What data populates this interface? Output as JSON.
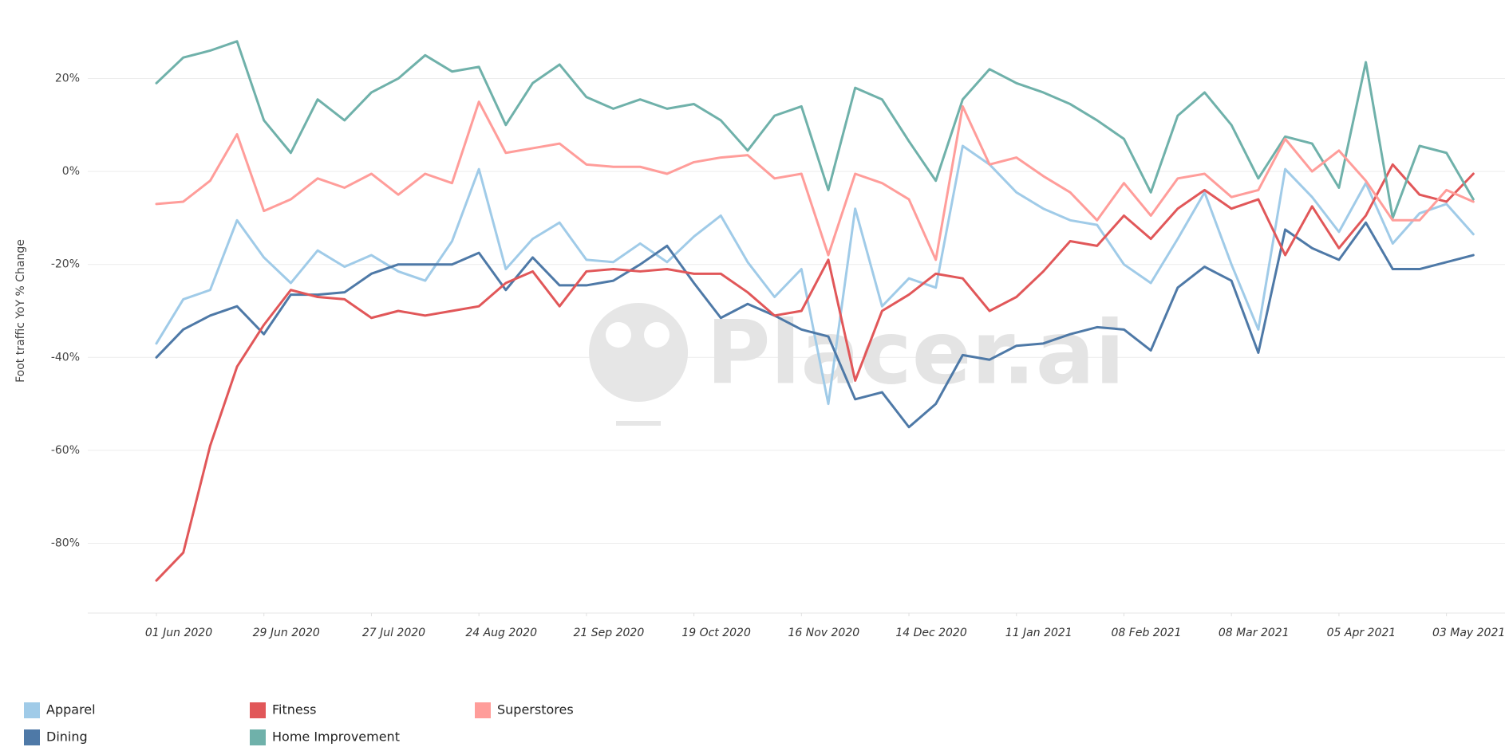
{
  "chart_data": {
    "type": "line",
    "y_label": "Foot traffic YoY % Change",
    "watermark": "Placer.ai",
    "x": [
      "2020-06-01",
      "2020-06-08",
      "2020-06-15",
      "2020-06-22",
      "2020-06-29",
      "2020-07-06",
      "2020-07-13",
      "2020-07-20",
      "2020-07-27",
      "2020-08-03",
      "2020-08-10",
      "2020-08-17",
      "2020-08-24",
      "2020-08-31",
      "2020-09-07",
      "2020-09-14",
      "2020-09-21",
      "2020-09-28",
      "2020-10-05",
      "2020-10-12",
      "2020-10-19",
      "2020-10-26",
      "2020-11-02",
      "2020-11-09",
      "2020-11-16",
      "2020-11-23",
      "2020-11-30",
      "2020-12-07",
      "2020-12-14",
      "2020-12-21",
      "2020-12-28",
      "2021-01-04",
      "2021-01-11",
      "2021-01-18",
      "2021-01-25",
      "2021-02-01",
      "2021-02-08",
      "2021-02-15",
      "2021-02-22",
      "2021-03-01",
      "2021-03-08",
      "2021-03-15",
      "2021-03-22",
      "2021-03-29",
      "2021-04-05",
      "2021-04-12",
      "2021-04-19",
      "2021-04-26",
      "2021-05-03",
      "2021-05-10"
    ],
    "xticks": [
      {
        "value": "2020-06-01",
        "label": "01 Jun 2020"
      },
      {
        "value": "2020-06-29",
        "label": "29 Jun 2020"
      },
      {
        "value": "2020-07-27",
        "label": "27 Jul 2020"
      },
      {
        "value": "2020-08-24",
        "label": "24 Aug 2020"
      },
      {
        "value": "2020-09-21",
        "label": "21 Sep 2020"
      },
      {
        "value": "2020-10-19",
        "label": "19 Oct 2020"
      },
      {
        "value": "2020-11-16",
        "label": "16 Nov 2020"
      },
      {
        "value": "2020-12-14",
        "label": "14 Dec 2020"
      },
      {
        "value": "2021-01-11",
        "label": "11 Jan 2021"
      },
      {
        "value": "2021-02-08",
        "label": "08 Feb 2021"
      },
      {
        "value": "2021-03-08",
        "label": "08 Mar 2021"
      },
      {
        "value": "2021-04-05",
        "label": "05 Apr 2021"
      },
      {
        "value": "2021-05-03",
        "label": "03 May 2021"
      }
    ],
    "ylim": [
      -95,
      35
    ],
    "yticks": [
      {
        "value": 20,
        "label": "20%"
      },
      {
        "value": 0,
        "label": "0%"
      },
      {
        "value": -20,
        "label": "-20%"
      },
      {
        "value": -40,
        "label": "-40%"
      },
      {
        "value": -60,
        "label": "-60%"
      },
      {
        "value": -80,
        "label": "-80%"
      }
    ],
    "grid": true,
    "legend": "bottom-left",
    "series": [
      {
        "name": "Apparel",
        "color": "#a0cbe8",
        "values": [
          -37,
          -27.5,
          -25.5,
          -10.5,
          -18.5,
          -24,
          -17,
          -20.5,
          -18,
          -21.5,
          -23.5,
          -15,
          0.5,
          -21,
          -14.5,
          -11,
          -19,
          -19.5,
          -15.5,
          -19.5,
          -14,
          -9.5,
          -19.5,
          -27,
          -21,
          -50,
          -8,
          -29,
          -23,
          -25,
          5.5,
          1.5,
          -4.5,
          -8,
          -10.5,
          -11.5,
          -20,
          -24,
          -14.5,
          -4.5,
          -20,
          -34,
          0.5,
          -5.5,
          -13,
          -2.5,
          -15.5,
          -9,
          -7,
          -13.5
        ]
      },
      {
        "name": "Dining",
        "color": "#4e79a7",
        "values": [
          -40,
          -34,
          -31,
          -29,
          -35,
          -26.5,
          -26.5,
          -26,
          -22,
          -20,
          -20,
          -20,
          -17.5,
          -25.5,
          -18.5,
          -24.5,
          -24.5,
          -23.5,
          -20,
          -16,
          -24,
          -31.5,
          -28.5,
          -31,
          -34,
          -35.5,
          -49,
          -47.5,
          -55,
          -50,
          -39.5,
          -40.5,
          -37.5,
          -37,
          -35,
          -33.5,
          -34,
          -38.5,
          -25,
          -20.5,
          -23.5,
          -39,
          -12.5,
          -16.5,
          -19,
          -11,
          -21,
          -21,
          -19.5,
          -18
        ]
      },
      {
        "name": "Fitness",
        "color": "#e15759",
        "values": [
          -88,
          -82,
          -59,
          -42,
          -33,
          -25.5,
          -27,
          -27.5,
          -31.5,
          -30,
          -31,
          -30,
          -29,
          -24,
          -21.5,
          -29,
          -21.5,
          -21,
          -21.5,
          -21,
          -22,
          -22,
          -26,
          -31,
          -30,
          -19,
          -45,
          -30,
          -26.5,
          -22,
          -23,
          -30,
          -27,
          -21.5,
          -15,
          -16,
          -9.5,
          -14.5,
          -8,
          -4,
          -8,
          -6,
          -18,
          -7.5,
          -16.5,
          -9.5,
          1.5,
          -5,
          -6.5,
          -0.5
        ]
      },
      {
        "name": "Home Improvement",
        "color": "#6fb1aa",
        "values": [
          19,
          24.5,
          26,
          28,
          11,
          4,
          15.5,
          11,
          17,
          20,
          25,
          21.5,
          22.5,
          10,
          19,
          23,
          16,
          13.5,
          15.5,
          13.5,
          14.5,
          11,
          4.5,
          12,
          14,
          -4,
          18,
          15.5,
          6.5,
          -2,
          15.5,
          22,
          19,
          17,
          14.5,
          11,
          7,
          -4.5,
          12,
          17,
          10,
          -1.5,
          7.5,
          6,
          -3.5,
          23.5,
          -10,
          5.5,
          4,
          -6
        ]
      },
      {
        "name": "Superstores",
        "color": "#ff9d9a",
        "values": [
          -7,
          -6.5,
          -2,
          8,
          -8.5,
          -6,
          -1.5,
          -3.5,
          -0.5,
          -5,
          -0.5,
          -2.5,
          15,
          4,
          5,
          6,
          1.5,
          1,
          1,
          -0.5,
          2,
          3,
          3.5,
          -1.5,
          -0.5,
          -18,
          -0.5,
          -2.5,
          -6,
          -19,
          14,
          1.5,
          3,
          -1,
          -4.5,
          -10.5,
          -2.5,
          -9.5,
          -1.5,
          -0.5,
          -5.5,
          -4,
          7,
          0,
          4.5,
          -2,
          -10.5,
          -10.5,
          -4,
          -6.5
        ]
      }
    ]
  }
}
